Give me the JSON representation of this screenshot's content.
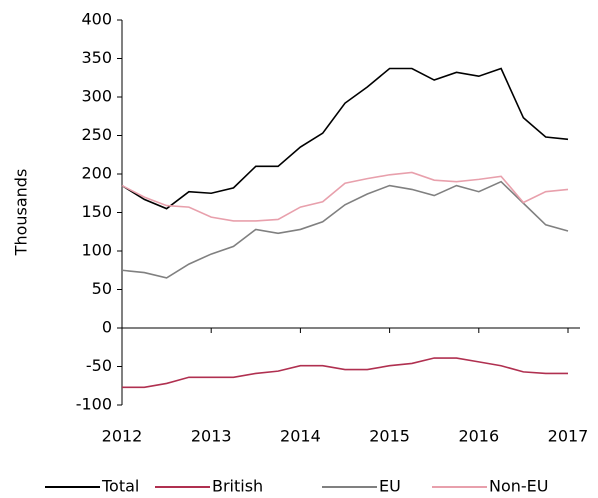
{
  "chart_data": {
    "type": "line",
    "y_label": "Thousands",
    "x": [
      2012,
      2012.25,
      2012.5,
      2012.75,
      2013,
      2013.25,
      2013.5,
      2013.75,
      2014,
      2014.25,
      2014.5,
      2014.75,
      2015,
      2015.25,
      2015.5,
      2015.75,
      2016,
      2016.25,
      2016.5,
      2016.75,
      2017
    ],
    "series": [
      {
        "name": "Total",
        "color": "#000000",
        "values": [
          185,
          167,
          155,
          177,
          175,
          182,
          210,
          210,
          235,
          253,
          292,
          313,
          337,
          337,
          322,
          332,
          327,
          337,
          273,
          248,
          245
        ]
      },
      {
        "name": "British",
        "color": "#b03050",
        "values": [
          -77,
          -77,
          -72,
          -64,
          -64,
          -64,
          -59,
          -56,
          -49,
          -49,
          -54,
          -54,
          -49,
          -46,
          -39,
          -39,
          -44,
          -49,
          -57,
          -59,
          -59
        ]
      },
      {
        "name": "EU",
        "color": "#808080",
        "values": [
          75,
          72,
          65,
          83,
          96,
          106,
          128,
          123,
          128,
          138,
          160,
          174,
          185,
          180,
          172,
          185,
          177,
          190,
          162,
          134,
          126
        ]
      },
      {
        "name": "Non-EU",
        "color": "#e8a0ac",
        "values": [
          185,
          170,
          159,
          157,
          144,
          139,
          139,
          141,
          157,
          164,
          188,
          194,
          199,
          202,
          192,
          190,
          193,
          197,
          163,
          177,
          180
        ]
      }
    ],
    "xlim": [
      2012,
      2017
    ],
    "xticks": [
      2012,
      2013,
      2014,
      2015,
      2016,
      2017
    ],
    "ylim": [
      -100,
      400
    ],
    "yticks": [
      -100,
      -50,
      0,
      50,
      100,
      150,
      200,
      250,
      300,
      350,
      400
    ],
    "grid": false,
    "legend": "bottom"
  }
}
